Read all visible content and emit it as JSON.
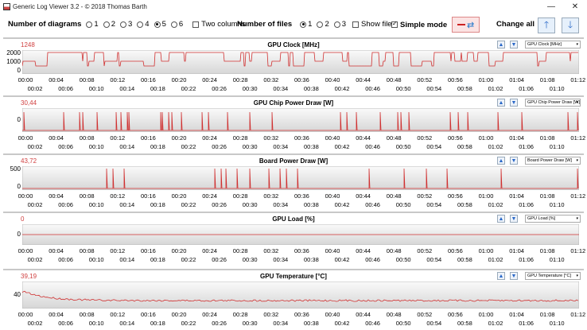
{
  "window": {
    "title": "Generic Log Viewer 3.2 - © 2018 Thomas Barth",
    "minimize": "—",
    "close": "✕"
  },
  "toolbar": {
    "num_diagrams_label": "Number of diagrams",
    "diagram_options": [
      "1",
      "2",
      "3",
      "4",
      "5",
      "6"
    ],
    "diagram_selected": "5",
    "two_columns_label": "Two columns",
    "num_files_label": "Number of files",
    "file_options": [
      "1",
      "2",
      "3"
    ],
    "file_selected": "1",
    "show_files_label": "Show files",
    "simple_mode_label": "Simple mode",
    "simple_mode_checked": true,
    "change_all_label": "Change all"
  },
  "ticks_row1": [
    "00:00",
    "00:04",
    "00:08",
    "00:12",
    "00:16",
    "00:20",
    "00:24",
    "00:28",
    "00:32",
    "00:36",
    "00:40",
    "00:44",
    "00:48",
    "00:52",
    "00:56",
    "01:00",
    "01:04",
    "01:08",
    "01:12"
  ],
  "ticks_row2": [
    "00:02",
    "00:06",
    "00:10",
    "00:14",
    "00:18",
    "00:22",
    "00:26",
    "00:30",
    "00:34",
    "00:38",
    "00:42",
    "00:46",
    "00:50",
    "00:54",
    "00:58",
    "01:02",
    "01:06",
    "01:10"
  ],
  "panels": [
    {
      "title": "GPU Clock [MHz]",
      "current": "1248",
      "select": "GPU Clock [MHz]",
      "ylabels": [
        "2000",
        "1000",
        "0"
      ],
      "signal": "clock"
    },
    {
      "title": "GPU Chip Power Draw [W]",
      "current": "30,44",
      "select": "GPU Chip Power Draw [W]",
      "ylabels": [
        "0"
      ],
      "signal": "spikes"
    },
    {
      "title": "Board Power Draw [W]",
      "current": "43,72",
      "select": "Board Power Draw [W]",
      "ylabels": [
        "500",
        "0"
      ],
      "signal": "spikes2"
    },
    {
      "title": "GPU Load [%]",
      "current": "0",
      "select": "GPU Load [%]",
      "ylabels": [
        "0"
      ],
      "signal": "flat"
    },
    {
      "title": "GPU Temperature [°C]",
      "current": "39,19",
      "select": "GPU Temperature [°C]",
      "ylabels": [
        "40"
      ],
      "signal": "temp"
    }
  ],
  "colors": {
    "series": "#d03030",
    "ylabel": "#d04040",
    "accent": "#2a68c8"
  }
}
